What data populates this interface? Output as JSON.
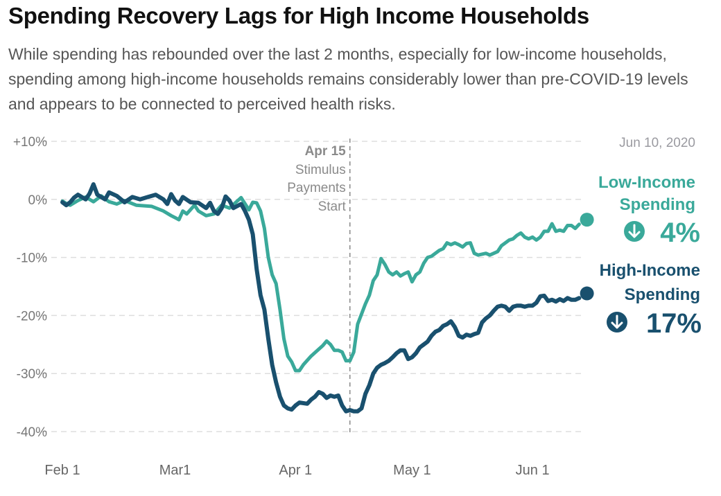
{
  "title": "Spending Recovery Lags for High Income Households",
  "subtitle": "While spending has rebounded over the last 2 months, especially for low-income households, spending among high-income households remains considerably lower than pre-COVID-19 levels and appears to be connected to perceived health risks.",
  "date_label": "Jun 10, 2020",
  "annotation": {
    "date": "Apr 15",
    "lines": [
      "Stimulus",
      "Payments",
      "Start"
    ]
  },
  "colors": {
    "low_income": "#3aa99a",
    "high_income": "#19506e",
    "grid": "#dddddd",
    "annotation_line": "#888888"
  },
  "end_labels": {
    "low": {
      "line1": "Low-Income",
      "line2": "Spending",
      "value": "4%",
      "icon": "down-arrow-circle-icon"
    },
    "high": {
      "line1": "High-Income",
      "line2": "Spending",
      "value": "17%",
      "icon": "down-arrow-circle-icon"
    }
  },
  "chart_data": {
    "type": "line",
    "x_type": "date",
    "xlim": [
      "2020-02-01",
      "2020-06-14"
    ],
    "x_ticks": [
      {
        "date": "2020-02-01",
        "label": "Feb 1"
      },
      {
        "date": "2020-03-01",
        "label": "Mar1"
      },
      {
        "date": "2020-04-01",
        "label": "Apr 1"
      },
      {
        "date": "2020-05-01",
        "label": "May 1"
      },
      {
        "date": "2020-06-01",
        "label": "Jun 1"
      }
    ],
    "ylim": [
      -40,
      10
    ],
    "y_ticks": [
      {
        "value": 10,
        "label": "+10%"
      },
      {
        "value": 0,
        "label": "0%"
      },
      {
        "value": -10,
        "label": "-10%"
      },
      {
        "value": -20,
        "label": "-20%"
      },
      {
        "value": -30,
        "label": "-30%"
      },
      {
        "value": -40,
        "label": "-40%"
      }
    ],
    "grid": true,
    "annotation_date": "2020-04-15",
    "series": [
      {
        "name": "Low-Income Spending",
        "key": "low",
        "points": [
          [
            "2020-02-01",
            -0.3
          ],
          [
            "2020-02-02",
            -0.7
          ],
          [
            "2020-02-03",
            -1.0
          ],
          [
            "2020-02-05",
            -0.2
          ],
          [
            "2020-02-07",
            0.4
          ],
          [
            "2020-02-09",
            -0.4
          ],
          [
            "2020-02-11",
            0.6
          ],
          [
            "2020-02-13",
            -0.4
          ],
          [
            "2020-02-15",
            -0.8
          ],
          [
            "2020-02-17",
            -0.2
          ],
          [
            "2020-02-20",
            -1.0
          ],
          [
            "2020-02-24",
            -1.2
          ],
          [
            "2020-02-27",
            -2.0
          ],
          [
            "2020-02-29",
            -2.8
          ],
          [
            "2020-03-02",
            -3.5
          ],
          [
            "2020-03-03",
            -2.0
          ],
          [
            "2020-03-04",
            -2.5
          ],
          [
            "2020-03-06",
            -1.0
          ],
          [
            "2020-03-07",
            -2.0
          ],
          [
            "2020-03-09",
            -2.8
          ],
          [
            "2020-03-11",
            -2.5
          ],
          [
            "2020-03-13",
            -1.0
          ],
          [
            "2020-03-15",
            -1.5
          ],
          [
            "2020-03-17",
            -0.3
          ],
          [
            "2020-03-18",
            0.3
          ],
          [
            "2020-03-20",
            -1.8
          ],
          [
            "2020-03-21",
            -0.5
          ],
          [
            "2020-03-22",
            -0.6
          ],
          [
            "2020-03-23",
            -2.0
          ],
          [
            "2020-03-24",
            -5.0
          ],
          [
            "2020-03-25",
            -10.0
          ],
          [
            "2020-03-26",
            -13.0
          ],
          [
            "2020-03-27",
            -14.5
          ],
          [
            "2020-03-28",
            -19.0
          ],
          [
            "2020-03-29",
            -24.0
          ],
          [
            "2020-03-30",
            -27.0
          ],
          [
            "2020-03-31",
            -28.0
          ],
          [
            "2020-04-01",
            -29.5
          ],
          [
            "2020-04-02",
            -29.5
          ],
          [
            "2020-04-03",
            -28.5
          ],
          [
            "2020-04-05",
            -27.0
          ],
          [
            "2020-04-07",
            -25.8
          ],
          [
            "2020-04-08",
            -25.2
          ],
          [
            "2020-04-09",
            -24.4
          ],
          [
            "2020-04-10",
            -25.0
          ],
          [
            "2020-04-11",
            -26.0
          ],
          [
            "2020-04-12",
            -26.0
          ],
          [
            "2020-04-13",
            -26.3
          ],
          [
            "2020-04-14",
            -27.8
          ],
          [
            "2020-04-15",
            -27.8
          ],
          [
            "2020-04-16",
            -26.3
          ],
          [
            "2020-04-17",
            -21.5
          ],
          [
            "2020-04-19",
            -18.0
          ],
          [
            "2020-04-20",
            -16.5
          ],
          [
            "2020-04-21",
            -14.0
          ],
          [
            "2020-04-22",
            -13.0
          ],
          [
            "2020-04-23",
            -10.2
          ],
          [
            "2020-04-24",
            -11.2
          ],
          [
            "2020-04-25",
            -12.5
          ],
          [
            "2020-04-26",
            -13.0
          ],
          [
            "2020-04-27",
            -12.5
          ],
          [
            "2020-04-28",
            -13.2
          ],
          [
            "2020-04-29",
            -12.8
          ],
          [
            "2020-04-30",
            -12.5
          ],
          [
            "2020-05-01",
            -14.2
          ],
          [
            "2020-05-02",
            -13.0
          ],
          [
            "2020-05-03",
            -12.5
          ],
          [
            "2020-05-04",
            -11.0
          ],
          [
            "2020-05-05",
            -10.0
          ],
          [
            "2020-05-06",
            -9.8
          ],
          [
            "2020-05-08",
            -8.8
          ],
          [
            "2020-05-09",
            -8.5
          ],
          [
            "2020-05-10",
            -7.5
          ],
          [
            "2020-05-11",
            -7.8
          ],
          [
            "2020-05-12",
            -7.5
          ],
          [
            "2020-05-13",
            -7.8
          ],
          [
            "2020-05-14",
            -8.2
          ],
          [
            "2020-05-15",
            -7.6
          ],
          [
            "2020-05-16",
            -7.5
          ],
          [
            "2020-05-17",
            -9.3
          ],
          [
            "2020-05-18",
            -9.6
          ],
          [
            "2020-05-20",
            -9.3
          ],
          [
            "2020-05-21",
            -9.6
          ],
          [
            "2020-05-22",
            -9.3
          ],
          [
            "2020-05-23",
            -9.0
          ],
          [
            "2020-05-24",
            -8.0
          ],
          [
            "2020-05-25",
            -7.5
          ],
          [
            "2020-05-26",
            -7.0
          ],
          [
            "2020-05-27",
            -6.8
          ],
          [
            "2020-05-28",
            -6.2
          ],
          [
            "2020-05-29",
            -5.8
          ],
          [
            "2020-05-30",
            -6.5
          ],
          [
            "2020-05-31",
            -6.8
          ],
          [
            "2020-06-01",
            -6.5
          ],
          [
            "2020-06-02",
            -7.0
          ],
          [
            "2020-06-03",
            -6.5
          ],
          [
            "2020-06-04",
            -5.5
          ],
          [
            "2020-06-05",
            -5.5
          ],
          [
            "2020-06-06",
            -4.2
          ],
          [
            "2020-06-07",
            -5.5
          ],
          [
            "2020-06-08",
            -5.3
          ],
          [
            "2020-06-09",
            -5.5
          ],
          [
            "2020-06-10",
            -4.5
          ],
          [
            "2020-06-11",
            -4.5
          ],
          [
            "2020-06-12",
            -5.0
          ],
          [
            "2020-06-13",
            -4.3
          ]
        ],
        "end_point": [
          "2020-06-15",
          -3.5
        ]
      },
      {
        "name": "High-Income Spending",
        "key": "high",
        "points": [
          [
            "2020-02-01",
            -0.5
          ],
          [
            "2020-02-02",
            -1.0
          ],
          [
            "2020-02-03",
            -0.5
          ],
          [
            "2020-02-04",
            0.3
          ],
          [
            "2020-02-05",
            0.8
          ],
          [
            "2020-02-07",
            0.0
          ],
          [
            "2020-02-08",
            1.0
          ],
          [
            "2020-02-09",
            2.6
          ],
          [
            "2020-02-10",
            0.8
          ],
          [
            "2020-02-12",
            0.0
          ],
          [
            "2020-02-13",
            1.2
          ],
          [
            "2020-02-15",
            0.6
          ],
          [
            "2020-02-17",
            -0.5
          ],
          [
            "2020-02-19",
            0.4
          ],
          [
            "2020-02-21",
            0.0
          ],
          [
            "2020-02-23",
            0.4
          ],
          [
            "2020-02-25",
            0.8
          ],
          [
            "2020-02-27",
            0.0
          ],
          [
            "2020-02-28",
            -0.8
          ],
          [
            "2020-02-29",
            0.9
          ],
          [
            "2020-03-01",
            -0.2
          ],
          [
            "2020-03-02",
            -0.8
          ],
          [
            "2020-03-03",
            0.4
          ],
          [
            "2020-03-05",
            -0.5
          ],
          [
            "2020-03-07",
            -0.6
          ],
          [
            "2020-03-09",
            -1.5
          ],
          [
            "2020-03-10",
            -0.6
          ],
          [
            "2020-03-11",
            -2.0
          ],
          [
            "2020-03-12",
            -2.5
          ],
          [
            "2020-03-13",
            -1.5
          ],
          [
            "2020-03-14",
            0.5
          ],
          [
            "2020-03-15",
            -0.2
          ],
          [
            "2020-03-16",
            -1.5
          ],
          [
            "2020-03-18",
            -0.8
          ],
          [
            "2020-03-19",
            -2.0
          ],
          [
            "2020-03-20",
            -3.5
          ],
          [
            "2020-03-21",
            -6.0
          ],
          [
            "2020-03-22",
            -12.0
          ],
          [
            "2020-03-23",
            -16.5
          ],
          [
            "2020-03-24",
            -19.0
          ],
          [
            "2020-03-25",
            -24.0
          ],
          [
            "2020-03-26",
            -28.5
          ],
          [
            "2020-03-27",
            -31.5
          ],
          [
            "2020-03-28",
            -34.0
          ],
          [
            "2020-03-29",
            -35.5
          ],
          [
            "2020-03-30",
            -36.0
          ],
          [
            "2020-03-31",
            -36.2
          ],
          [
            "2020-04-01",
            -35.5
          ],
          [
            "2020-04-02",
            -35.0
          ],
          [
            "2020-04-04",
            -35.2
          ],
          [
            "2020-04-05",
            -34.5
          ],
          [
            "2020-04-06",
            -34.0
          ],
          [
            "2020-04-07",
            -33.2
          ],
          [
            "2020-04-08",
            -33.5
          ],
          [
            "2020-04-09",
            -34.2
          ],
          [
            "2020-04-10",
            -33.8
          ],
          [
            "2020-04-11",
            -34.0
          ],
          [
            "2020-04-12",
            -33.8
          ],
          [
            "2020-04-13",
            -35.5
          ],
          [
            "2020-04-14",
            -36.5
          ],
          [
            "2020-04-15",
            -36.3
          ],
          [
            "2020-04-16",
            -36.5
          ],
          [
            "2020-04-17",
            -36.5
          ],
          [
            "2020-04-18",
            -36.0
          ],
          [
            "2020-04-19",
            -33.5
          ],
          [
            "2020-04-20",
            -32.0
          ],
          [
            "2020-04-21",
            -30.0
          ],
          [
            "2020-04-22",
            -29.0
          ],
          [
            "2020-04-23",
            -28.5
          ],
          [
            "2020-04-24",
            -28.2
          ],
          [
            "2020-04-25",
            -27.8
          ],
          [
            "2020-04-26",
            -27.2
          ],
          [
            "2020-04-27",
            -26.5
          ],
          [
            "2020-04-28",
            -26.0
          ],
          [
            "2020-04-29",
            -26.0
          ],
          [
            "2020-04-30",
            -27.5
          ],
          [
            "2020-05-01",
            -27.2
          ],
          [
            "2020-05-02",
            -26.5
          ],
          [
            "2020-05-03",
            -25.5
          ],
          [
            "2020-05-04",
            -25.0
          ],
          [
            "2020-05-05",
            -24.5
          ],
          [
            "2020-05-06",
            -23.5
          ],
          [
            "2020-05-07",
            -22.8
          ],
          [
            "2020-05-08",
            -22.5
          ],
          [
            "2020-05-09",
            -21.8
          ],
          [
            "2020-05-10",
            -21.5
          ],
          [
            "2020-05-11",
            -21.0
          ],
          [
            "2020-05-12",
            -22.0
          ],
          [
            "2020-05-13",
            -23.5
          ],
          [
            "2020-05-14",
            -23.8
          ],
          [
            "2020-05-15",
            -23.3
          ],
          [
            "2020-05-16",
            -23.5
          ],
          [
            "2020-05-17",
            -23.2
          ],
          [
            "2020-05-18",
            -23.0
          ],
          [
            "2020-05-19",
            -21.2
          ],
          [
            "2020-05-20",
            -20.5
          ],
          [
            "2020-05-21",
            -20.0
          ],
          [
            "2020-05-22",
            -19.2
          ],
          [
            "2020-05-23",
            -18.5
          ],
          [
            "2020-05-24",
            -18.3
          ],
          [
            "2020-05-25",
            -18.5
          ],
          [
            "2020-05-26",
            -19.2
          ],
          [
            "2020-05-27",
            -18.5
          ],
          [
            "2020-05-28",
            -18.3
          ],
          [
            "2020-05-29",
            -18.3
          ],
          [
            "2020-05-30",
            -18.5
          ],
          [
            "2020-05-31",
            -18.3
          ],
          [
            "2020-06-01",
            -18.3
          ],
          [
            "2020-06-02",
            -17.8
          ],
          [
            "2020-06-03",
            -16.7
          ],
          [
            "2020-06-04",
            -16.6
          ],
          [
            "2020-06-05",
            -17.5
          ],
          [
            "2020-06-06",
            -17.3
          ],
          [
            "2020-06-07",
            -17.6
          ],
          [
            "2020-06-08",
            -17.2
          ],
          [
            "2020-06-09",
            -17.5
          ],
          [
            "2020-06-10",
            -17.0
          ],
          [
            "2020-06-11",
            -17.3
          ],
          [
            "2020-06-12",
            -17.3
          ],
          [
            "2020-06-13",
            -17.0
          ]
        ],
        "end_point": [
          "2020-06-15",
          -16.2
        ]
      }
    ]
  }
}
